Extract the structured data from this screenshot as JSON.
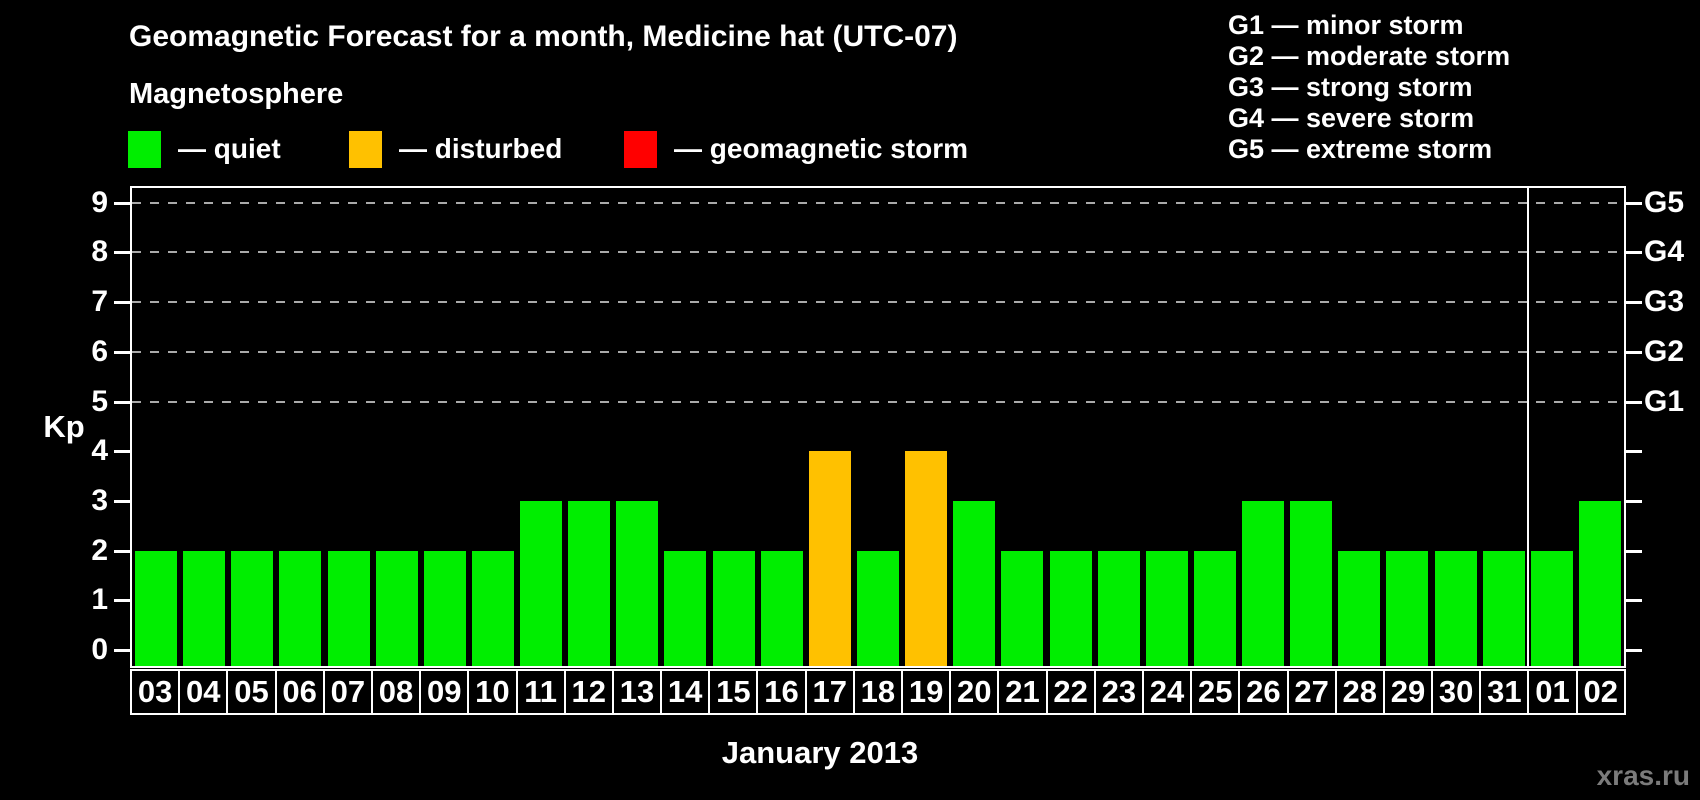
{
  "header": {
    "title": "Geomagnetic Forecast for a month, Medicine hat (UTC-07)",
    "subtitle": "Magnetosphere"
  },
  "magnetosphere_legend": [
    {
      "name": "quiet",
      "label": "— quiet",
      "color": "#00ee00"
    },
    {
      "name": "disturbed",
      "label": "— disturbed",
      "color": "#ffc100"
    },
    {
      "name": "storm",
      "label": "— geomagnetic storm",
      "color": "#ff0000"
    }
  ],
  "storm_scale_legend": [
    "G1 — minor storm",
    "G2 — moderate storm",
    "G3 — strong storm",
    "G4 — severe storm",
    "G5 — extreme storm"
  ],
  "chart_data": {
    "type": "bar",
    "title": "Geomagnetic Forecast for a month, Medicine hat (UTC-07)",
    "categories": [
      "03",
      "04",
      "05",
      "06",
      "07",
      "08",
      "09",
      "10",
      "11",
      "12",
      "13",
      "14",
      "15",
      "16",
      "17",
      "18",
      "19",
      "20",
      "21",
      "22",
      "23",
      "24",
      "25",
      "26",
      "27",
      "28",
      "29",
      "30",
      "31",
      "01",
      "02"
    ],
    "values": [
      2,
      2,
      2,
      2,
      2,
      2,
      2,
      2,
      3,
      3,
      3,
      2,
      2,
      2,
      4,
      2,
      4,
      3,
      2,
      2,
      2,
      2,
      2,
      3,
      3,
      2,
      2,
      2,
      2,
      2,
      3
    ],
    "statuses": [
      "quiet",
      "quiet",
      "quiet",
      "quiet",
      "quiet",
      "quiet",
      "quiet",
      "quiet",
      "quiet",
      "quiet",
      "quiet",
      "quiet",
      "quiet",
      "quiet",
      "disturbed",
      "quiet",
      "disturbed",
      "quiet",
      "quiet",
      "quiet",
      "quiet",
      "quiet",
      "quiet",
      "quiet",
      "quiet",
      "quiet",
      "quiet",
      "quiet",
      "quiet",
      "quiet",
      "quiet"
    ],
    "status_colors": {
      "quiet": "#00ee00",
      "disturbed": "#ffc100",
      "storm": "#ff0000"
    },
    "ylabel": "Kp",
    "xlabel": "January 2013",
    "ylim": [
      0,
      9
    ],
    "yticks": [
      0,
      1,
      2,
      3,
      4,
      5,
      6,
      7,
      8,
      9
    ],
    "grid_kp": [
      5,
      6,
      7,
      8,
      9
    ],
    "right_axis": {
      "5": "G1",
      "6": "G2",
      "7": "G3",
      "8": "G4",
      "9": "G5"
    },
    "month_boundary_after_index": 28,
    "grid": "dashed-horizontal-top-half",
    "legend_position": "top-left"
  },
  "watermark": "xras.ru"
}
